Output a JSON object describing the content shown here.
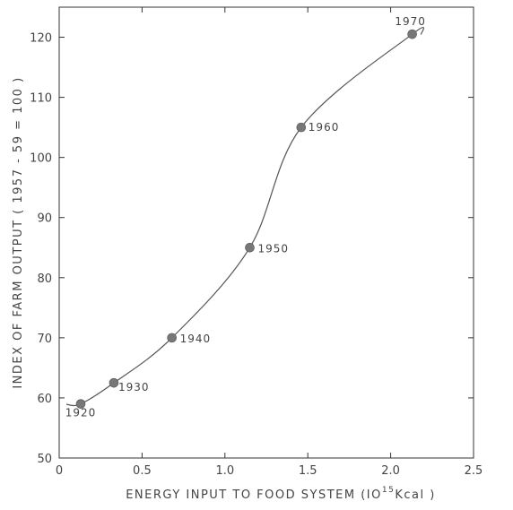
{
  "chart_data": {
    "type": "scatter",
    "title": "",
    "xlabel_main": "ENERGY INPUT TO FOOD SYSTEM (",
    "xlabel_base": "IO",
    "xlabel_exp": "15",
    "xlabel_unit": "Kcal )",
    "ylabel": "INDEX OF FARM OUTPUT ( 1957 - 59 = 100 )",
    "xlim": [
      0,
      2.5
    ],
    "ylim": [
      50,
      125
    ],
    "xticks": [
      0,
      0.5,
      1.0,
      1.5,
      2.0,
      2.5
    ],
    "xtick_labels": [
      "0",
      "0.5",
      "1.0",
      "1.5",
      "2.0",
      "2.5"
    ],
    "yticks": [
      50,
      60,
      70,
      80,
      90,
      100,
      110,
      120
    ],
    "ytick_labels": [
      "50",
      "60",
      "70",
      "80",
      "90",
      "100",
      "110",
      "120"
    ],
    "grid": false,
    "legend": "none",
    "colors": {
      "line": "#555555",
      "marker": "#777777",
      "axis": "#333333",
      "text": "#444444"
    },
    "points": [
      {
        "label": "1920",
        "x": 0.13,
        "y": 59
      },
      {
        "label": "1930",
        "x": 0.33,
        "y": 62.5
      },
      {
        "label": "1940",
        "x": 0.68,
        "y": 70
      },
      {
        "label": "1950",
        "x": 1.15,
        "y": 85
      },
      {
        "label": "1960",
        "x": 1.46,
        "y": 105
      },
      {
        "label": "1970",
        "x": 2.13,
        "y": 120.5
      }
    ]
  }
}
